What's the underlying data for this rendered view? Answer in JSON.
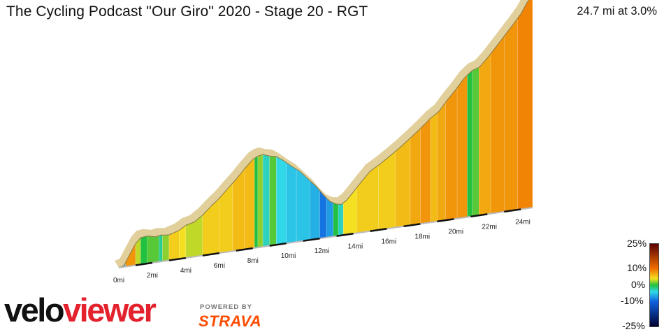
{
  "header": {
    "title": "The Cycling Podcast \"Our Giro\" 2020 - Stage 20 - RGT",
    "summary": "24.7 mi at 3.0%"
  },
  "branding": {
    "logo_part1": "velo",
    "logo_part2": "viewer",
    "powered_by": "POWERED BY",
    "strava": "STRAVA",
    "logo_color": "#e4222e",
    "strava_color": "#fc4c02"
  },
  "legend": {
    "labels": [
      "25%",
      "10%",
      "0%",
      "-10%",
      "-25%"
    ],
    "stops": [
      {
        "grade": 25,
        "color": "#5a0000"
      },
      {
        "grade": 10,
        "color": "#f07000"
      },
      {
        "grade": 4,
        "color": "#f4e020"
      },
      {
        "grade": 0,
        "color": "#22c040"
      },
      {
        "grade": -4,
        "color": "#30d8e8"
      },
      {
        "grade": -10,
        "color": "#1060e0"
      },
      {
        "grade": -25,
        "color": "#000030"
      }
    ]
  },
  "chart_data": {
    "type": "area",
    "title": "The Cycling Podcast \"Our Giro\" 2020 - Stage 20 - RGT",
    "xlabel": "",
    "ylabel": "",
    "x_unit": "mi",
    "xlim": [
      0,
      24.7
    ],
    "tick_labels": [
      "0mi",
      "2mi",
      "4mi",
      "6mi",
      "8mi",
      "10mi",
      "12mi",
      "14mi",
      "16mi",
      "18mi",
      "20mi",
      "22mi",
      "24mi"
    ],
    "tick_values": [
      0,
      2,
      4,
      6,
      8,
      10,
      12,
      14,
      16,
      18,
      20,
      22,
      24
    ],
    "profile_relative_elevation": [
      [
        0.0,
        0.0
      ],
      [
        0.3,
        0.005
      ],
      [
        0.6,
        0.04
      ],
      [
        1.0,
        0.085
      ],
      [
        1.3,
        0.105
      ],
      [
        1.7,
        0.108
      ],
      [
        2.2,
        0.1
      ],
      [
        2.5,
        0.104
      ],
      [
        3.0,
        0.1
      ],
      [
        3.6,
        0.112
      ],
      [
        4.0,
        0.128
      ],
      [
        4.5,
        0.136
      ],
      [
        5.0,
        0.158
      ],
      [
        5.5,
        0.188
      ],
      [
        6.0,
        0.215
      ],
      [
        6.5,
        0.248
      ],
      [
        7.0,
        0.28
      ],
      [
        7.5,
        0.316
      ],
      [
        8.0,
        0.348
      ],
      [
        8.3,
        0.358
      ],
      [
        8.6,
        0.362
      ],
      [
        9.0,
        0.352
      ],
      [
        9.4,
        0.346
      ],
      [
        9.8,
        0.328
      ],
      [
        10.3,
        0.3
      ],
      [
        10.8,
        0.275
      ],
      [
        11.3,
        0.24
      ],
      [
        11.8,
        0.205
      ],
      [
        12.2,
        0.17
      ],
      [
        12.6,
        0.14
      ],
      [
        13.0,
        0.125
      ],
      [
        13.3,
        0.122
      ],
      [
        13.6,
        0.135
      ],
      [
        14.0,
        0.163
      ],
      [
        14.5,
        0.2
      ],
      [
        15.0,
        0.235
      ],
      [
        15.6,
        0.258
      ],
      [
        16.2,
        0.284
      ],
      [
        16.8,
        0.312
      ],
      [
        17.4,
        0.342
      ],
      [
        18.0,
        0.374
      ],
      [
        18.6,
        0.408
      ],
      [
        19.1,
        0.43
      ],
      [
        19.6,
        0.47
      ],
      [
        20.1,
        0.505
      ],
      [
        20.6,
        0.545
      ],
      [
        21.1,
        0.572
      ],
      [
        21.5,
        0.58
      ],
      [
        22.0,
        0.612
      ],
      [
        22.5,
        0.65
      ],
      [
        23.0,
        0.688
      ],
      [
        23.5,
        0.726
      ],
      [
        24.0,
        0.766
      ],
      [
        24.4,
        0.81
      ],
      [
        24.7,
        0.83
      ]
    ],
    "grade_segments_percent": [
      [
        0.0,
        0.4,
        -6
      ],
      [
        0.4,
        1.0,
        8
      ],
      [
        1.0,
        1.3,
        3
      ],
      [
        1.3,
        1.7,
        0
      ],
      [
        1.7,
        2.4,
        1
      ],
      [
        2.4,
        2.6,
        -2
      ],
      [
        2.6,
        3.0,
        2
      ],
      [
        3.0,
        3.6,
        5
      ],
      [
        3.6,
        4.0,
        4
      ],
      [
        4.0,
        5.0,
        3
      ],
      [
        5.0,
        6.0,
        5
      ],
      [
        6.0,
        6.8,
        5
      ],
      [
        6.8,
        7.5,
        6
      ],
      [
        7.5,
        8.1,
        6
      ],
      [
        8.1,
        8.3,
        0
      ],
      [
        8.3,
        8.6,
        2
      ],
      [
        8.6,
        9.0,
        -3
      ],
      [
        9.0,
        9.4,
        1
      ],
      [
        9.4,
        10.0,
        -4
      ],
      [
        10.0,
        10.6,
        -5
      ],
      [
        10.6,
        11.4,
        -5
      ],
      [
        11.4,
        12.0,
        -6
      ],
      [
        12.0,
        12.4,
        -9
      ],
      [
        12.4,
        12.8,
        -7
      ],
      [
        12.8,
        13.1,
        0
      ],
      [
        13.1,
        13.4,
        -3
      ],
      [
        13.4,
        14.2,
        4
      ],
      [
        14.2,
        15.5,
        5
      ],
      [
        15.5,
        16.5,
        5
      ],
      [
        16.5,
        17.4,
        6
      ],
      [
        17.4,
        18.0,
        7
      ],
      [
        18.0,
        18.6,
        8
      ],
      [
        18.6,
        19.0,
        6
      ],
      [
        19.0,
        19.5,
        7
      ],
      [
        19.5,
        20.2,
        8
      ],
      [
        20.2,
        20.8,
        8
      ],
      [
        20.8,
        21.1,
        0
      ],
      [
        21.1,
        21.5,
        1
      ],
      [
        21.5,
        22.2,
        7
      ],
      [
        22.2,
        23.0,
        8
      ],
      [
        23.0,
        23.8,
        8
      ],
      [
        23.8,
        24.7,
        9
      ]
    ]
  }
}
